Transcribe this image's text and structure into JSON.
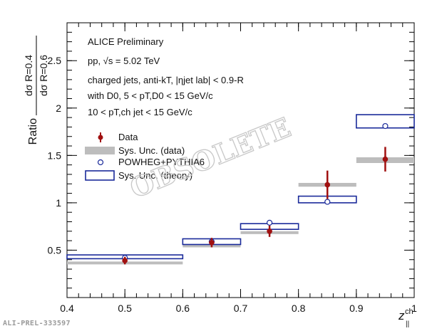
{
  "figure_id": "ALI-PREL-333597",
  "watermark": "OBSOLETE",
  "chart_data": {
    "type": "scatter",
    "title": "",
    "xlabel_main": "z",
    "xlabel_sup": "ch",
    "xlabel_sub": "||",
    "ylabel_prefix": "Ratio",
    "ylabel_numerator": "dσ R=0.4",
    "ylabel_denominator": "dσ R=0.6",
    "xlim": [
      0.4,
      1.0
    ],
    "ylim": [
      0.0,
      2.9
    ],
    "xticks": [
      0.4,
      0.5,
      0.6,
      0.7,
      0.8,
      0.9,
      1.0
    ],
    "xtick_labels": [
      "0.4",
      "0.5",
      "0.6",
      "0.7",
      "0.8",
      "0.9",
      "1"
    ],
    "yticks": [
      0.5,
      1.0,
      1.5,
      2.0,
      2.5
    ],
    "ytick_labels": [
      "0.5",
      "1",
      "1.5",
      "2",
      "2.5"
    ],
    "grid": false,
    "annotations": {
      "line1": "ALICE Preliminary",
      "line2": "pp, √s = 5.02 TeV",
      "line3": "charged jets, anti-kT, |ηjet lab| < 0.9-R",
      "line4": "with D0, 5 < pT,D0 < 15 GeV/c",
      "line5": "10 < pT,ch jet < 15 GeV/c"
    },
    "legend": {
      "position": "left",
      "entries": [
        "Data",
        "Sys. Unc. (data)",
        "POWHEG+PYTHIA6",
        "Sys. Unc. (theory)"
      ]
    },
    "series": [
      {
        "name": "Data",
        "color": "#a01010",
        "x": [
          0.5,
          0.65,
          0.75,
          0.85,
          0.95
        ],
        "y": [
          0.39,
          0.58,
          0.7,
          1.19,
          1.46
        ],
        "stat_err": [
          0.04,
          0.05,
          0.06,
          0.15,
          0.13
        ]
      },
      {
        "name": "Sys. Unc. (data)",
        "color": "#bdbdbd",
        "x_low": [
          0.4,
          0.6,
          0.7,
          0.8,
          0.9
        ],
        "x_high": [
          0.6,
          0.7,
          0.8,
          0.9,
          1.0
        ],
        "y_low": [
          0.37,
          0.55,
          0.68,
          1.17,
          1.42
        ],
        "y_high": [
          0.38,
          0.56,
          0.7,
          1.21,
          1.48
        ]
      },
      {
        "name": "POWHEG+PYTHIA6",
        "color": "#1a2a9a",
        "x": [
          0.5,
          0.65,
          0.75,
          0.85,
          0.95
        ],
        "y": [
          0.42,
          0.59,
          0.79,
          1.01,
          1.81
        ]
      },
      {
        "name": "Sys. Unc. (theory)",
        "color": "#1a2a9a",
        "x_low": [
          0.4,
          0.6,
          0.7,
          0.8,
          0.9
        ],
        "x_high": [
          0.6,
          0.7,
          0.8,
          0.9,
          1.0
        ],
        "y_low": [
          0.41,
          0.56,
          0.72,
          1.0,
          1.79
        ],
        "y_high": [
          0.45,
          0.62,
          0.78,
          1.07,
          1.93
        ]
      }
    ]
  }
}
